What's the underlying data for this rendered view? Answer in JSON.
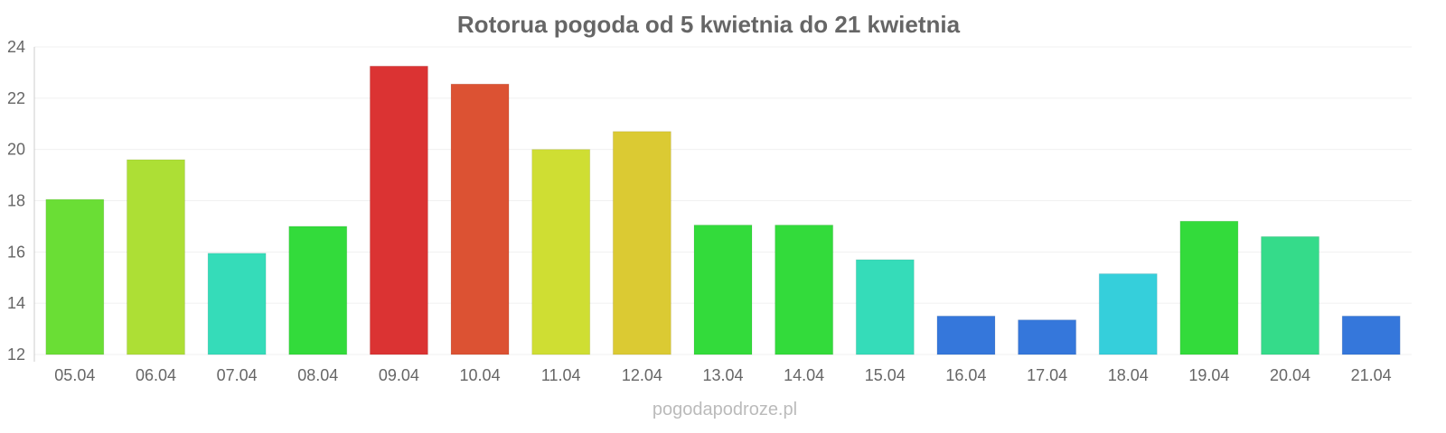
{
  "chart_data": {
    "type": "bar",
    "title": "Rotorua pogoda od 5 kwietnia do 21 kwietnia",
    "xlabel": "",
    "ylabel": "",
    "ylim": [
      12,
      24
    ],
    "yticks": [
      12,
      14,
      16,
      18,
      20,
      22,
      24
    ],
    "grid": true,
    "categories": [
      "05.04",
      "06.04",
      "07.04",
      "08.04",
      "09.04",
      "10.04",
      "11.04",
      "12.04",
      "13.04",
      "14.04",
      "15.04",
      "16.04",
      "17.04",
      "18.04",
      "19.04",
      "20.04",
      "21.04"
    ],
    "values": [
      18.05,
      19.6,
      15.95,
      17.0,
      23.25,
      22.55,
      20.0,
      20.7,
      17.05,
      17.05,
      15.7,
      13.5,
      13.35,
      15.15,
      17.2,
      16.6,
      13.5
    ],
    "colors": [
      "#6ade35",
      "#addf35",
      "#35dcb9",
      "#33db3b",
      "#db3333",
      "#dc5233",
      "#cfde33",
      "#dbca33",
      "#33db3b",
      "#33db3b",
      "#35dcb9",
      "#3577db",
      "#3577db",
      "#35cfdb",
      "#33db3b",
      "#35db8a",
      "#3577db"
    ],
    "credit": "pogodapodroze.pl"
  }
}
